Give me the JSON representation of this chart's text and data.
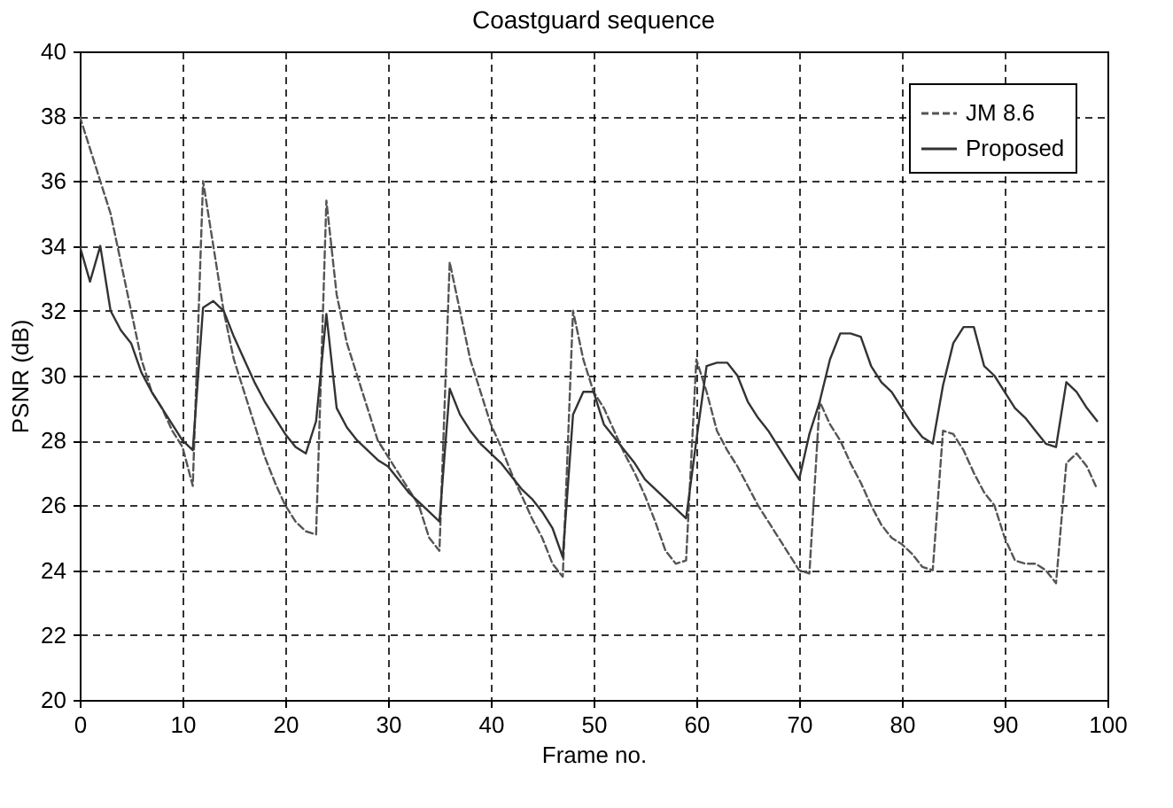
{
  "chart_data": {
    "type": "line",
    "title": "Coastguard sequence",
    "xlabel": "Frame no.",
    "ylabel": "PSNR (dB)",
    "x": [
      0,
      1,
      2,
      3,
      4,
      5,
      6,
      7,
      8,
      9,
      10,
      11,
      12,
      13,
      14,
      15,
      16,
      17,
      18,
      19,
      20,
      21,
      22,
      23,
      24,
      25,
      26,
      27,
      28,
      29,
      30,
      31,
      32,
      33,
      34,
      35,
      36,
      37,
      38,
      39,
      40,
      41,
      42,
      43,
      44,
      45,
      46,
      47,
      48,
      49,
      50,
      51,
      52,
      53,
      54,
      55,
      56,
      57,
      58,
      59,
      60,
      61,
      62,
      63,
      64,
      65,
      66,
      67,
      68,
      69,
      70,
      71,
      72,
      73,
      74,
      75,
      76,
      77,
      78,
      79,
      80,
      81,
      82,
      83,
      84,
      85,
      86,
      87,
      88,
      89,
      90,
      91,
      92,
      93,
      94,
      95,
      96,
      97,
      98,
      99
    ],
    "series": [
      {
        "name": "JM 8.6",
        "color": "#555555",
        "line_style": "dashed",
        "values": [
          38,
          37,
          36,
          35,
          33.5,
          32,
          30.5,
          29.5,
          29,
          28.3,
          27.8,
          26.6,
          36,
          34,
          32,
          30.5,
          29.5,
          28.5,
          27.5,
          26.7,
          26,
          25.5,
          25.2,
          25.1,
          35.4,
          32.5,
          31,
          30,
          29,
          28,
          27.5,
          27,
          26.5,
          26,
          25,
          24.6,
          33.5,
          32,
          30.5,
          29.5,
          28.5,
          27.8,
          27,
          26.3,
          25.6,
          25,
          24.2,
          23.8,
          32,
          30.5,
          29.5,
          29,
          28.3,
          27.6,
          27,
          26.3,
          25.5,
          24.6,
          24.2,
          24.3,
          30.5,
          29.5,
          28.3,
          27.7,
          27.2,
          26.6,
          26,
          25.5,
          25,
          24.5,
          24,
          23.9,
          29.2,
          28.5,
          28,
          27.3,
          26.7,
          26,
          25.4,
          25,
          24.8,
          24.5,
          24.1,
          24,
          28.3,
          28.2,
          27.7,
          27,
          26.4,
          26,
          25,
          24.3,
          24.2,
          24.2,
          24,
          23.6,
          27.3,
          27.6,
          27.2,
          26.5
        ]
      },
      {
        "name": "Proposed",
        "color": "#333333",
        "line_style": "solid",
        "values": [
          34,
          32.9,
          34,
          32,
          31.4,
          31,
          30.1,
          29.5,
          29,
          28.5,
          28,
          27.7,
          32.1,
          32.3,
          32,
          31.2,
          30.5,
          29.8,
          29.2,
          28.7,
          28.2,
          27.8,
          27.6,
          28.6,
          31.9,
          29,
          28.4,
          28,
          27.7,
          27.4,
          27.2,
          26.8,
          26.4,
          26.1,
          25.8,
          25.5,
          29.6,
          28.8,
          28.3,
          27.9,
          27.6,
          27.3,
          26.9,
          26.5,
          26.2,
          25.8,
          25.3,
          24.4,
          28.8,
          29.5,
          29.5,
          28.5,
          28.1,
          27.7,
          27.3,
          26.8,
          26.5,
          26.2,
          25.9,
          25.6,
          28,
          30.3,
          30.4,
          30.4,
          30,
          29.2,
          28.7,
          28.3,
          27.8,
          27.3,
          26.8,
          28.2,
          29.2,
          30.5,
          31.3,
          31.3,
          31.2,
          30.3,
          29.8,
          29.5,
          29,
          28.5,
          28.1,
          27.9,
          29.7,
          31,
          31.5,
          31.5,
          30.3,
          30,
          29.5,
          29,
          28.7,
          28.3,
          27.9,
          27.8,
          29.8,
          29.5,
          29,
          28.6
        ]
      }
    ],
    "xlim": [
      0,
      100
    ],
    "xticks": [
      0,
      10,
      20,
      30,
      40,
      50,
      60,
      70,
      80,
      90,
      100
    ],
    "ylim": [
      20,
      40
    ],
    "yticks": [
      20,
      22,
      24,
      26,
      28,
      30,
      32,
      34,
      36,
      38,
      40
    ],
    "grid": true,
    "legend": "top right"
  }
}
